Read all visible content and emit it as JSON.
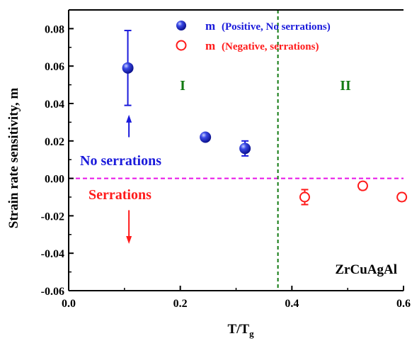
{
  "chart_data": {
    "type": "scatter",
    "xlabel": "T/T",
    "xlabel_sub": "g",
    "ylabel": "Strain rate sensitivity, m",
    "xlim": [
      0.0,
      0.6
    ],
    "ylim": [
      -0.06,
      0.09
    ],
    "x_ticks": [
      0.0,
      0.2,
      0.4,
      0.6
    ],
    "x_tick_labels": [
      "0.0",
      "0.2",
      "0.4",
      "0.6"
    ],
    "y_ticks": [
      -0.06,
      -0.04,
      -0.02,
      0.0,
      0.02,
      0.04,
      0.06,
      0.08
    ],
    "y_tick_labels": [
      "-0.06",
      "-0.04",
      "-0.02",
      "0.00",
      "0.02",
      "0.04",
      "0.06",
      "0.08"
    ],
    "grid": false,
    "legend_position": "top-right",
    "series": [
      {
        "name": "m (Positive, No serrations)",
        "symbol": "m",
        "desc": "(Positive, No serrations)",
        "color": "#1a1adb",
        "marker": "filled-circle",
        "x": [
          0.106,
          0.245,
          0.316
        ],
        "y": [
          0.059,
          0.022,
          0.016
        ],
        "err": [
          0.02,
          0.001,
          0.004
        ]
      },
      {
        "name": "m (Negative, serrations)",
        "symbol": "m",
        "desc": "(Negative, serrations)",
        "color": "#ff1a1a",
        "marker": "open-circle",
        "x": [
          0.423,
          0.527,
          0.597
        ],
        "y": [
          -0.01,
          -0.004,
          -0.01
        ],
        "err": [
          0.004,
          0.002,
          0.002
        ]
      }
    ],
    "reference_lines": [
      {
        "orientation": "horizontal",
        "value": 0.0,
        "color": "#e815e8",
        "style": "dashed"
      },
      {
        "orientation": "vertical",
        "value": 0.375,
        "color": "#117a11",
        "style": "dashed"
      }
    ],
    "annotations": {
      "region_1": {
        "text": "I",
        "x": 0.163,
        "y": 0.05,
        "color": "#117a11"
      },
      "region_2": {
        "text": "II",
        "x": 0.487,
        "y": 0.05,
        "color": "#117a11"
      },
      "no_serrations": {
        "text": "No serrations",
        "x": 0.068,
        "y": 0.0085,
        "color": "#1a1adb"
      },
      "serrations": {
        "text": "Serrations",
        "x": 0.088,
        "y": -0.0085,
        "color": "#ff1a1a"
      },
      "alloy": {
        "text": "ZrCuAgAl",
        "x": 0.538,
        "y": -0.049,
        "color": "#000000"
      }
    },
    "arrows": [
      {
        "x": 0.108,
        "from_y": 0.022,
        "to_y": 0.034,
        "color": "#1a1adb"
      },
      {
        "x": 0.108,
        "from_y": -0.017,
        "to_y": -0.035,
        "color": "#ff1a1a"
      }
    ]
  }
}
